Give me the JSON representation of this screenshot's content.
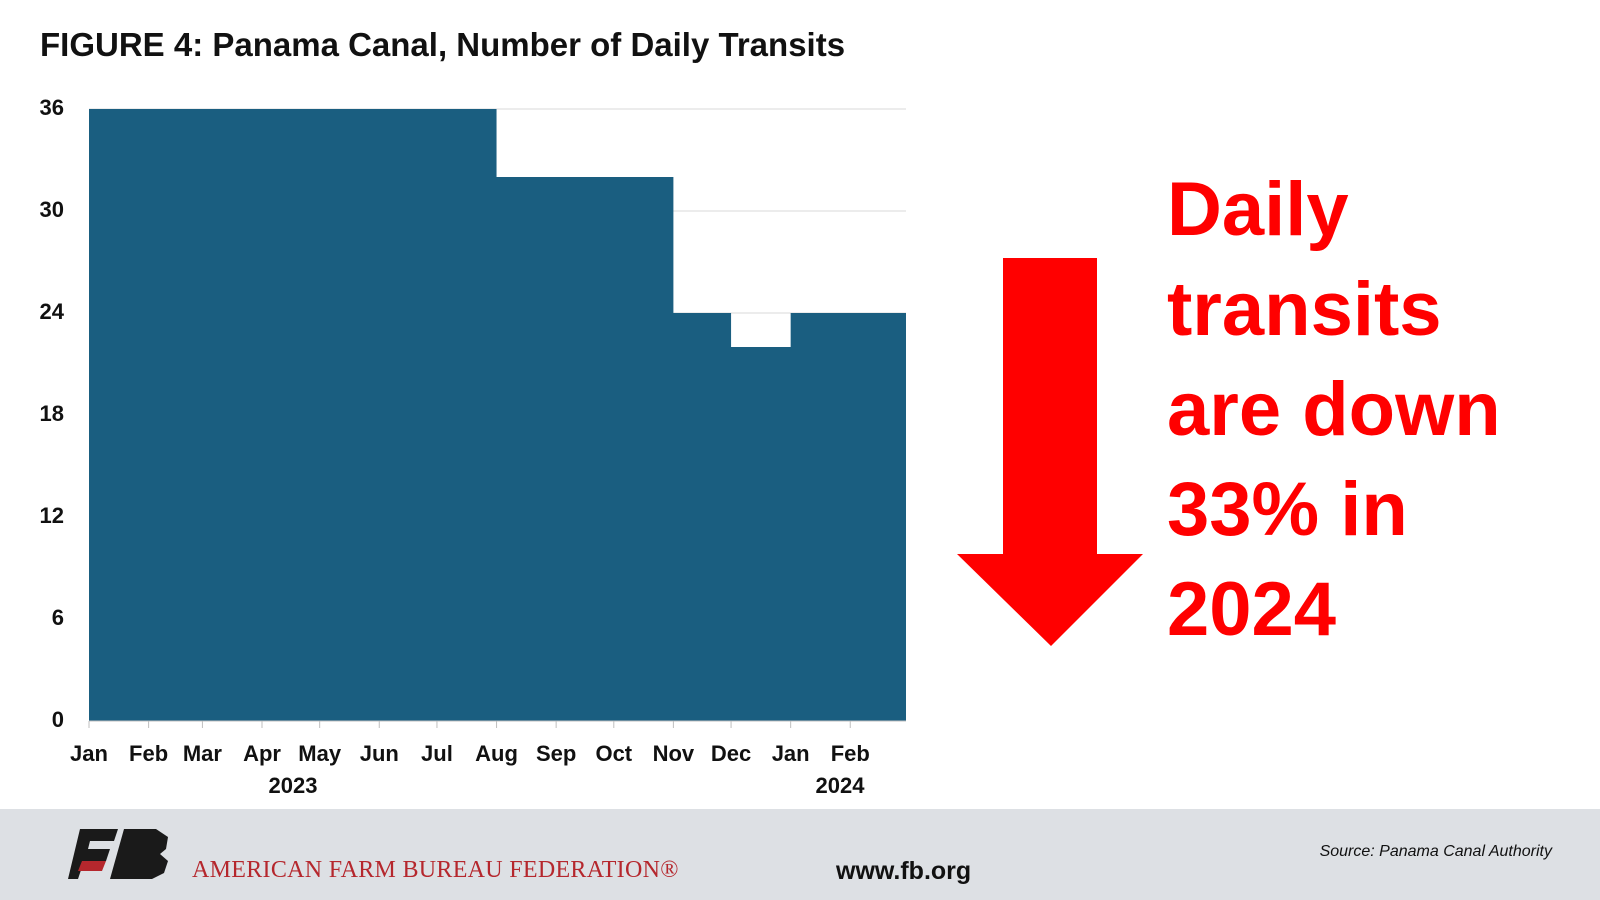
{
  "chart_data": {
    "type": "step-area",
    "title": "FIGURE 4: Panama Canal, Number of Daily Transits",
    "x": [
      "2023-01",
      "2023-02",
      "2023-03",
      "2023-04",
      "2023-05",
      "2023-06",
      "2023-07",
      "2023-08",
      "2023-09",
      "2023-10",
      "2023-11",
      "2023-12",
      "2024-01",
      "2024-02"
    ],
    "values": [
      36,
      36,
      36,
      36,
      36,
      36,
      36,
      32,
      32,
      32,
      24,
      22,
      24,
      24
    ],
    "color": "#1a5e80",
    "xlim": [
      "2023-01",
      "2024-03"
    ],
    "xticks": [
      {
        "value": "2023-01",
        "label": "Jan"
      },
      {
        "value": "2023-02",
        "label": "Feb"
      },
      {
        "value": "2023-03",
        "label": "Mar"
      },
      {
        "value": "2023-04",
        "label": "Apr"
      },
      {
        "value": "2023-05",
        "label": "May"
      },
      {
        "value": "2023-06",
        "label": "Jun"
      },
      {
        "value": "2023-07",
        "label": "Jul"
      },
      {
        "value": "2023-08",
        "label": "Aug"
      },
      {
        "value": "2023-09",
        "label": "Sep"
      },
      {
        "value": "2023-10",
        "label": "Oct"
      },
      {
        "value": "2023-11",
        "label": "Nov"
      },
      {
        "value": "2023-12",
        "label": "Dec"
      },
      {
        "value": "2024-01",
        "label": "Jan"
      },
      {
        "value": "2024-02",
        "label": "Feb"
      }
    ],
    "year_labels": [
      "2023",
      "2024"
    ],
    "ylim": [
      0,
      36
    ],
    "yticks": [
      0,
      6,
      12,
      18,
      24,
      30,
      36
    ],
    "grid": true,
    "annotation": "Daily transits are down 33% in 2024"
  },
  "footer": {
    "organization": "AMERICAN FARM BUREAU FEDERATION®",
    "website": "www.fb.org",
    "source": "Source: Panama Canal Authority"
  }
}
